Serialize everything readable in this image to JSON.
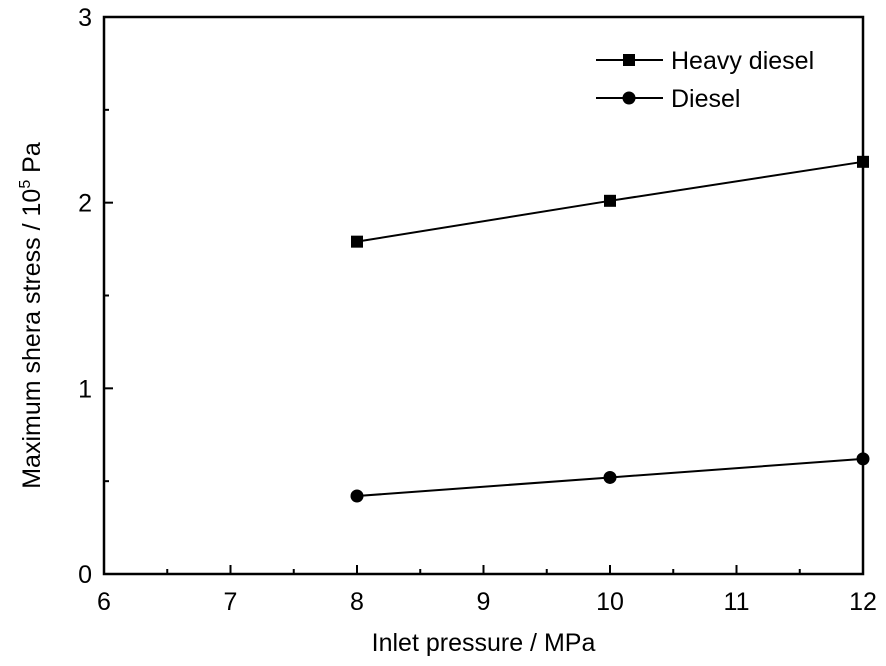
{
  "chart_data": {
    "type": "line",
    "title": "",
    "xlabel": "Inlet pressure / MPa",
    "ylabel": {
      "text": "Maximum shera stress / 10",
      "superscript": "5",
      "suffix": " Pa"
    },
    "xlim": [
      6,
      12
    ],
    "ylim": [
      0,
      3
    ],
    "x_major_ticks": [
      6,
      7,
      8,
      9,
      10,
      11,
      12
    ],
    "x_minor_ticks": [
      6.5,
      7.5,
      8.5,
      9.5,
      10.5,
      11.5
    ],
    "y_major_ticks": [
      0,
      1,
      2,
      3
    ],
    "y_minor_ticks": [
      0.5,
      1.5,
      2.5
    ],
    "x_tick_labels": [
      "6",
      "7",
      "8",
      "9",
      "10",
      "11",
      "12"
    ],
    "y_tick_labels": [
      "0",
      "1",
      "2",
      "3"
    ],
    "grid": false,
    "legend_position": "top-right",
    "colors": {
      "line": "#000000",
      "axis": "#000000",
      "background": "#ffffff"
    },
    "series": [
      {
        "name": "Heavy diesel",
        "marker": "square",
        "x": [
          8,
          10,
          12
        ],
        "y": [
          1.79,
          2.01,
          2.22
        ]
      },
      {
        "name": "Diesel",
        "marker": "circle",
        "x": [
          8,
          10,
          12
        ],
        "y": [
          0.42,
          0.52,
          0.62
        ]
      }
    ]
  }
}
